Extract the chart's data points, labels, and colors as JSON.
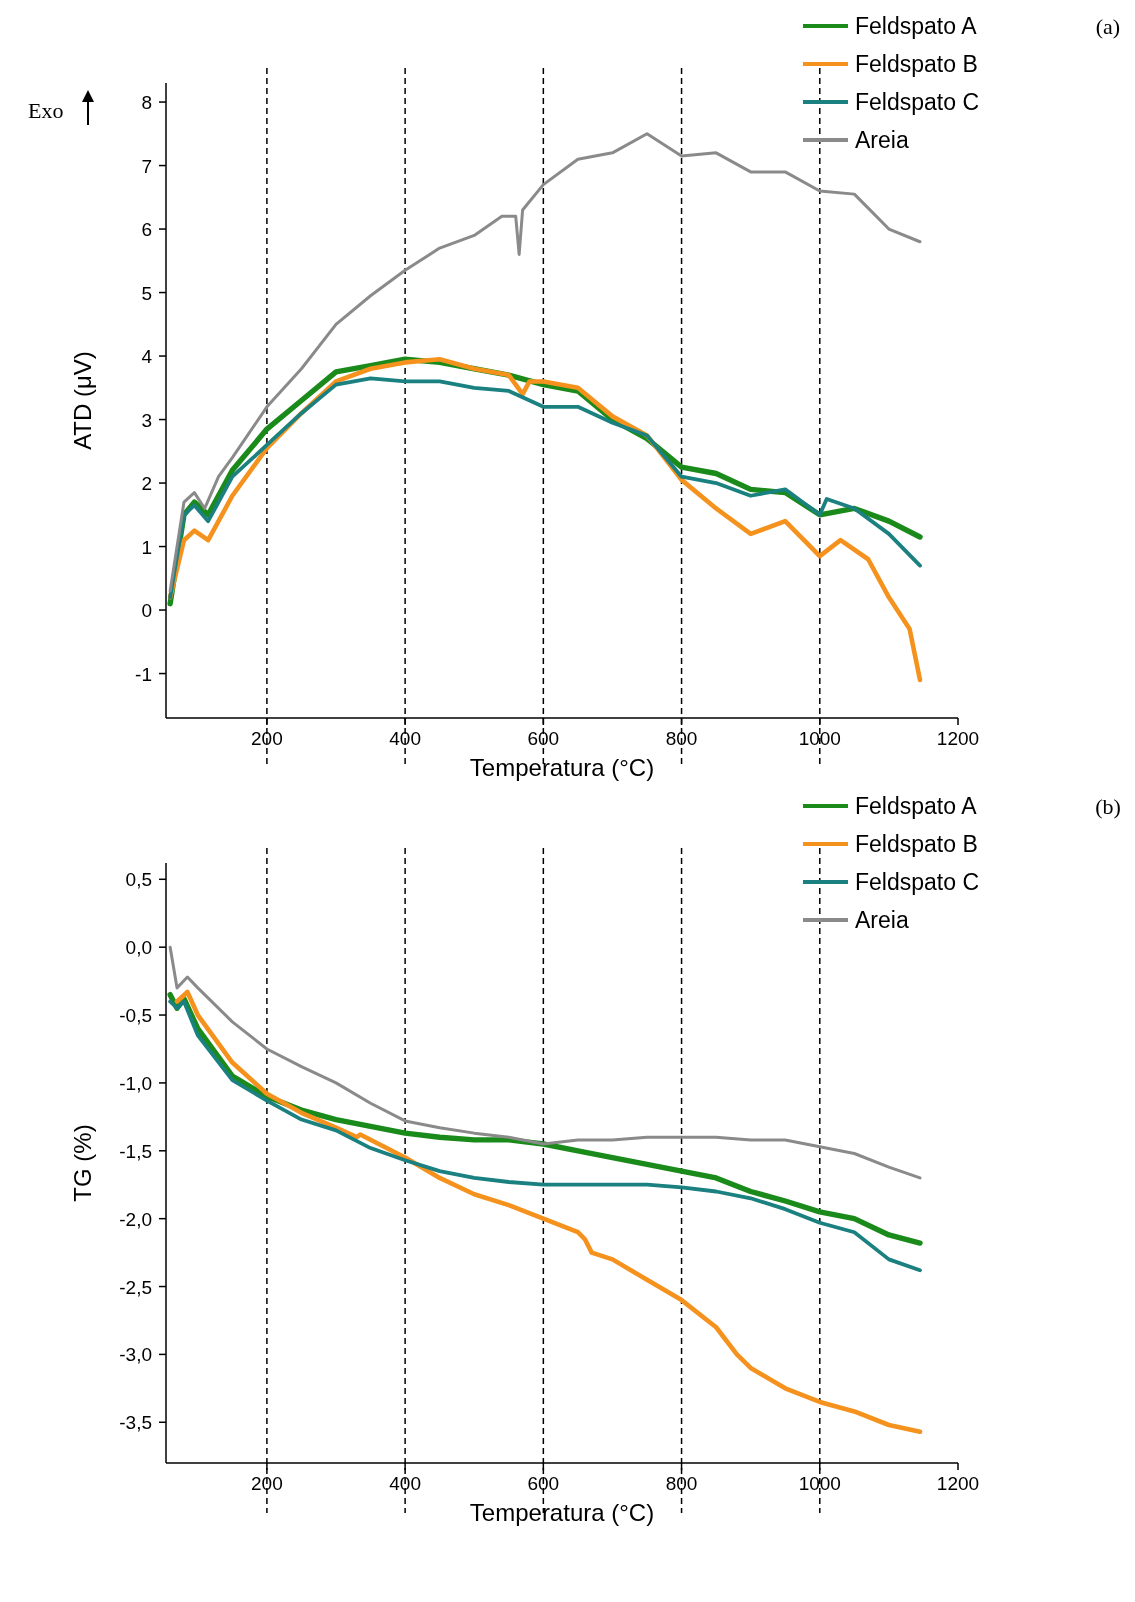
{
  "chart_data": [
    {
      "type": "line",
      "ylabel": "ATD (μV)",
      "xlabel": "Temperatura (°C)",
      "annotations": [
        "(a)",
        "Exo"
      ],
      "xlim": [
        54,
        1200
      ],
      "ylim": [
        -1.7,
        8.3
      ],
      "xticks": [
        200,
        400,
        600,
        800,
        1000,
        1200
      ],
      "yticks": [
        -1,
        0,
        1,
        2,
        3,
        4,
        5,
        6,
        7,
        8
      ],
      "legend": "top right",
      "grid": false,
      "ref_lines": [
        {
          "axis": "x",
          "value": 200,
          "line_style": "dashed",
          "color": "#000000"
        },
        {
          "axis": "x",
          "value": 400,
          "line_style": "dashed",
          "color": "#000000"
        },
        {
          "axis": "x",
          "value": 600,
          "line_style": "dashed",
          "color": "#000000"
        },
        {
          "axis": "x",
          "value": 800,
          "line_style": "dashed",
          "color": "#000000"
        },
        {
          "axis": "x",
          "value": 1000,
          "line_style": "dashed",
          "color": "#000000"
        }
      ],
      "series": [
        {
          "name": "Feldspato A",
          "color": "#1a8a1a",
          "x": [
            60,
            80,
            95,
            115,
            150,
            200,
            250,
            300,
            350,
            400,
            450,
            500,
            550,
            600,
            650,
            700,
            750,
            800,
            850,
            900,
            950,
            1000,
            1050,
            1100,
            1145
          ],
          "values": [
            0.1,
            1.5,
            1.7,
            1.5,
            2.2,
            2.85,
            3.3,
            3.75,
            3.85,
            3.95,
            3.9,
            3.8,
            3.7,
            3.55,
            3.45,
            3.0,
            2.7,
            2.25,
            2.15,
            1.9,
            1.85,
            1.5,
            1.6,
            1.4,
            1.15
          ]
        },
        {
          "name": "Feldspato B",
          "color": "#f5921e",
          "x": [
            60,
            80,
            95,
            115,
            150,
            200,
            250,
            300,
            350,
            400,
            450,
            500,
            550,
            570,
            580,
            600,
            650,
            700,
            750,
            800,
            850,
            900,
            950,
            1000,
            1030,
            1070,
            1100,
            1130,
            1145
          ],
          "values": [
            0.2,
            1.1,
            1.25,
            1.1,
            1.8,
            2.55,
            3.1,
            3.6,
            3.8,
            3.9,
            3.95,
            3.8,
            3.7,
            3.4,
            3.6,
            3.6,
            3.5,
            3.05,
            2.75,
            2.05,
            1.6,
            1.2,
            1.4,
            0.85,
            1.1,
            0.8,
            0.2,
            -0.3,
            -1.1
          ]
        },
        {
          "name": "Feldspato C",
          "color": "#1a8080",
          "x": [
            60,
            80,
            95,
            115,
            150,
            200,
            250,
            300,
            350,
            400,
            450,
            500,
            550,
            600,
            650,
            700,
            750,
            800,
            850,
            900,
            950,
            1000,
            1010,
            1050,
            1100,
            1145
          ],
          "values": [
            0.2,
            1.5,
            1.65,
            1.4,
            2.1,
            2.6,
            3.1,
            3.55,
            3.65,
            3.6,
            3.6,
            3.5,
            3.45,
            3.2,
            3.2,
            2.95,
            2.75,
            2.1,
            2.0,
            1.8,
            1.9,
            1.5,
            1.75,
            1.6,
            1.2,
            0.7
          ]
        },
        {
          "name": "Areia",
          "color": "#8a8a8a",
          "x": [
            60,
            80,
            95,
            110,
            130,
            150,
            200,
            250,
            300,
            350,
            400,
            450,
            500,
            540,
            560,
            565,
            570,
            600,
            650,
            700,
            750,
            800,
            850,
            900,
            950,
            1000,
            1050,
            1100,
            1145
          ],
          "values": [
            0.3,
            1.7,
            1.85,
            1.6,
            2.1,
            2.4,
            3.2,
            3.8,
            4.5,
            4.95,
            5.35,
            5.7,
            5.9,
            6.2,
            6.2,
            5.6,
            6.3,
            6.7,
            7.1,
            7.2,
            7.5,
            7.15,
            7.2,
            6.9,
            6.9,
            6.6,
            6.55,
            6.0,
            5.8
          ]
        }
      ]
    },
    {
      "type": "line",
      "ylabel": "TG (%)",
      "xlabel": "Temperatura (°C)",
      "annotations": [
        "(b)"
      ],
      "xlim": [
        54,
        1200
      ],
      "ylim": [
        -3.8,
        0.62
      ],
      "xticks": [
        200,
        400,
        600,
        800,
        1000,
        1200
      ],
      "yticks": [
        {
          "value": 0.5,
          "label": "0,5"
        },
        {
          "value": 0,
          "label": "0,0"
        },
        {
          "value": -0.5,
          "label": "-0,5"
        },
        {
          "value": -1,
          "label": "-1,0"
        },
        {
          "value": -1.5,
          "label": "-1,5"
        },
        {
          "value": -2,
          "label": "-2,0"
        },
        {
          "value": -2.5,
          "label": "-2,5"
        },
        {
          "value": -3,
          "label": "-3,0"
        },
        {
          "value": -3.5,
          "label": "-3,5"
        }
      ],
      "legend": "top right",
      "grid": false,
      "ref_lines": [
        {
          "axis": "x",
          "value": 200,
          "line_style": "dashed",
          "color": "#000000"
        },
        {
          "axis": "x",
          "value": 400,
          "line_style": "dashed",
          "color": "#000000"
        },
        {
          "axis": "x",
          "value": 600,
          "line_style": "dashed",
          "color": "#000000"
        },
        {
          "axis": "x",
          "value": 800,
          "line_style": "dashed",
          "color": "#000000"
        },
        {
          "axis": "x",
          "value": 1000,
          "line_style": "dashed",
          "color": "#000000"
        }
      ],
      "series": [
        {
          "name": "Feldspato A",
          "color": "#1a8a1a",
          "x": [
            60,
            70,
            80,
            100,
            150,
            200,
            250,
            300,
            350,
            400,
            450,
            500,
            550,
            600,
            650,
            700,
            750,
            800,
            850,
            900,
            950,
            1000,
            1050,
            1100,
            1145
          ],
          "values": [
            -0.35,
            -0.45,
            -0.38,
            -0.6,
            -0.95,
            -1.1,
            -1.2,
            -1.27,
            -1.32,
            -1.37,
            -1.4,
            -1.42,
            -1.42,
            -1.45,
            -1.5,
            -1.55,
            -1.6,
            -1.65,
            -1.7,
            -1.8,
            -1.87,
            -1.95,
            -2.0,
            -2.12,
            -2.18
          ]
        },
        {
          "name": "Feldspato B",
          "color": "#f5921e",
          "x": [
            70,
            85,
            100,
            150,
            200,
            250,
            300,
            330,
            335,
            400,
            450,
            500,
            550,
            600,
            650,
            660,
            670,
            700,
            750,
            800,
            850,
            880,
            900,
            950,
            1000,
            1050,
            1100,
            1145
          ],
          "values": [
            -0.4,
            -0.33,
            -0.5,
            -0.85,
            -1.08,
            -1.22,
            -1.33,
            -1.4,
            -1.38,
            -1.55,
            -1.7,
            -1.82,
            -1.9,
            -2.0,
            -2.1,
            -2.15,
            -2.25,
            -2.3,
            -2.45,
            -2.6,
            -2.8,
            -3.0,
            -3.1,
            -3.25,
            -3.35,
            -3.42,
            -3.52,
            -3.57
          ]
        },
        {
          "name": "Feldspato C",
          "color": "#1a8080",
          "x": [
            60,
            70,
            80,
            100,
            150,
            200,
            250,
            300,
            350,
            400,
            450,
            500,
            550,
            600,
            650,
            700,
            750,
            800,
            850,
            900,
            950,
            1000,
            1050,
            1100,
            1145
          ],
          "values": [
            -0.4,
            -0.45,
            -0.4,
            -0.65,
            -0.98,
            -1.13,
            -1.27,
            -1.35,
            -1.48,
            -1.57,
            -1.65,
            -1.7,
            -1.73,
            -1.75,
            -1.75,
            -1.75,
            -1.75,
            -1.77,
            -1.8,
            -1.85,
            -1.93,
            -2.03,
            -2.1,
            -2.3,
            -2.38
          ]
        },
        {
          "name": "Areia",
          "color": "#8a8a8a",
          "x": [
            60,
            70,
            85,
            100,
            150,
            200,
            250,
            300,
            350,
            400,
            450,
            500,
            550,
            600,
            650,
            700,
            750,
            800,
            850,
            900,
            950,
            1000,
            1050,
            1100,
            1145
          ],
          "values": [
            0,
            -0.3,
            -0.22,
            -0.3,
            -0.55,
            -0.75,
            -0.88,
            -1.0,
            -1.15,
            -1.28,
            -1.33,
            -1.37,
            -1.4,
            -1.45,
            -1.42,
            -1.42,
            -1.4,
            -1.4,
            -1.4,
            -1.42,
            -1.42,
            -1.47,
            -1.52,
            -1.62,
            -1.7
          ]
        }
      ]
    }
  ]
}
